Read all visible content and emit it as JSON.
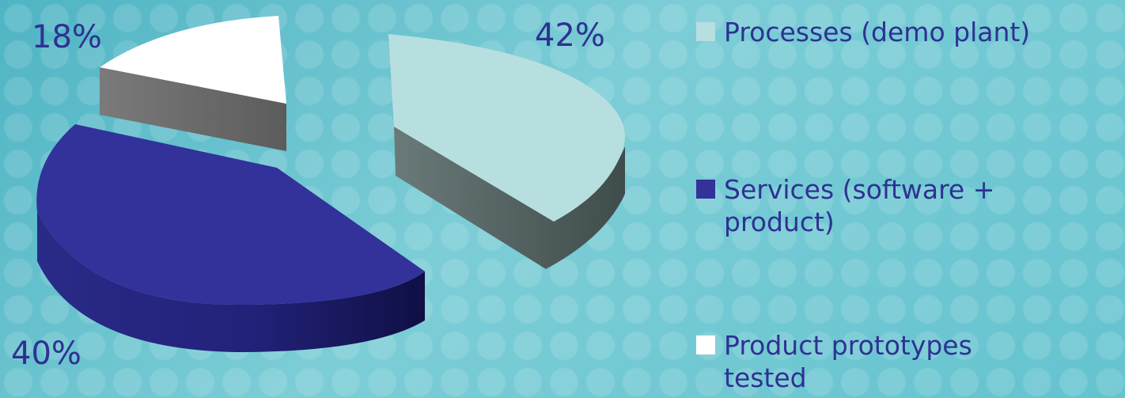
{
  "chart_data": {
    "type": "pie",
    "style": "3d-exploded",
    "label_color": "#2e3192",
    "series": [
      {
        "slices": [
          {
            "label": "Processes (demo plant)",
            "value": 42,
            "value_label": "42%",
            "top_color": "#b8dfe0",
            "side_color": "#4b5a59"
          },
          {
            "label": "Services (software + product)",
            "value": 40,
            "value_label": "40%",
            "top_color": "#32329a",
            "side_color": "#1c1c66"
          },
          {
            "label": "Product prototypes tested",
            "value": 18,
            "value_label": "18%",
            "top_color": "#ffffff",
            "side_color": "#6b6b6b"
          }
        ]
      }
    ],
    "legend": {
      "position": "right",
      "items": [
        {
          "label": "Processes (demo plant)",
          "color": "#b8dfe0"
        },
        {
          "label": "Services (software + product)",
          "color": "#32329a"
        },
        {
          "label": "Product prototypes tested",
          "color": "#ffffff"
        }
      ]
    }
  }
}
